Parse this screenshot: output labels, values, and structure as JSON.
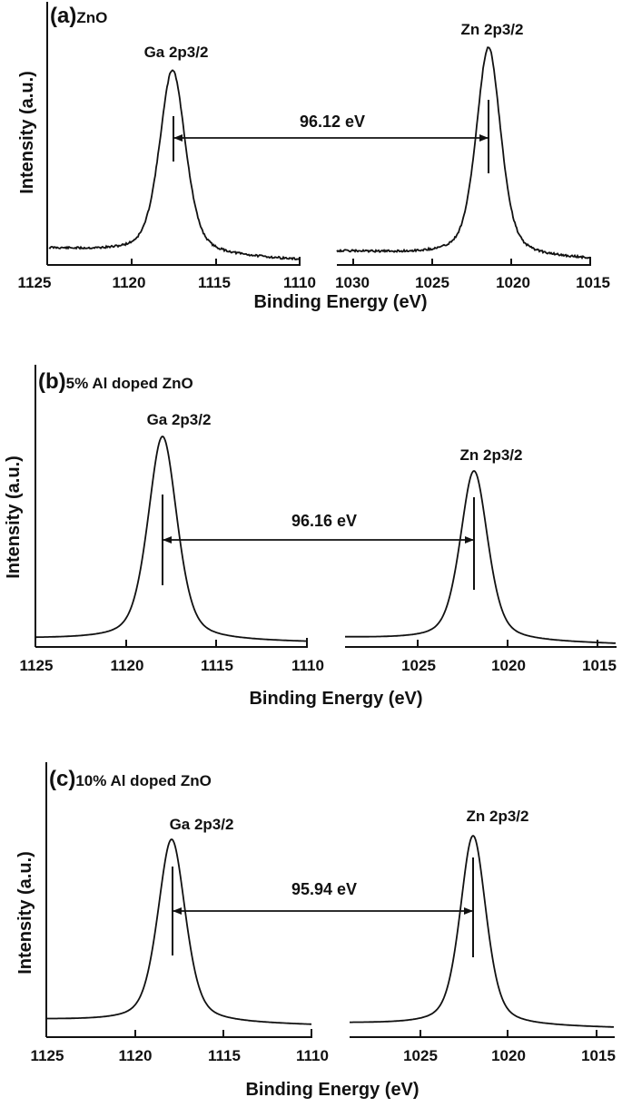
{
  "figure": {
    "xlabel": "Binding Energy (eV)",
    "ylabel": "Intensity (a.u.)"
  },
  "panels": [
    {
      "tag": "(a)",
      "title": "ZnO",
      "ga_label": "Ga 2p3/2",
      "zn_label": "Zn 2p3/2",
      "separation_label": "96.12 eV",
      "left_ticks": [
        "1125",
        "1120",
        "1115",
        "1110"
      ],
      "right_ticks": [
        "1030",
        "1025",
        "1020",
        "1015"
      ]
    },
    {
      "tag": "(b)",
      "title": "5% Al doped ZnO",
      "ga_label": "Ga 2p3/2",
      "zn_label": "Zn 2p3/2",
      "separation_label": "96.16 eV",
      "left_ticks": [
        "1125",
        "1120",
        "1115",
        "1110"
      ],
      "right_ticks": [
        "1025",
        "1020",
        "1015"
      ]
    },
    {
      "tag": "(c)",
      "title": "10% Al doped ZnO",
      "ga_label": "Ga 2p3/2",
      "zn_label": "Zn 2p3/2",
      "separation_label": "95.94 eV",
      "left_ticks": [
        "1125",
        "1120",
        "1115",
        "1110"
      ],
      "right_ticks": [
        "1025",
        "1020",
        "1015"
      ]
    }
  ],
  "chart_data": [
    {
      "type": "line",
      "title": "(a) ZnO",
      "xlabel": "Binding Energy (eV)",
      "ylabel": "Intensity (a.u.)",
      "x_axis": "broken, reversed",
      "segments": [
        {
          "xlim": [
            1125,
            1110
          ],
          "ticks": [
            1125,
            1120,
            1115,
            1110
          ]
        },
        {
          "xlim": [
            1031,
            1015
          ],
          "ticks": [
            1030,
            1025,
            1020,
            1015
          ]
        }
      ],
      "series": [
        {
          "name": "Ga 2p3/2",
          "peak_position_eV": 1117.5,
          "relative_peak_height": 0.75,
          "fwhm_eV": 1.9,
          "noisy": true
        },
        {
          "name": "Zn 2p3/2",
          "peak_position_eV": 1021.4,
          "relative_peak_height": 0.84,
          "fwhm_eV": 1.9,
          "noisy": true
        }
      ],
      "annotations": [
        {
          "text": "96.12 eV",
          "type": "double-arrow",
          "from": "Ga 2p3/2 peak",
          "to": "Zn 2p3/2 peak"
        }
      ],
      "grid": false,
      "yticks": "none"
    },
    {
      "type": "line",
      "title": "(b) 5% Al doped ZnO",
      "xlabel": "Binding Energy (eV)",
      "ylabel": "Intensity (a.u.)",
      "x_axis": "broken, reversed",
      "segments": [
        {
          "xlim": [
            1125,
            1110
          ],
          "ticks": [
            1125,
            1120,
            1115,
            1110
          ]
        },
        {
          "xlim": [
            1029,
            1014
          ],
          "ticks": [
            1025,
            1020,
            1015
          ]
        }
      ],
      "series": [
        {
          "name": "Ga 2p3/2",
          "peak_position_eV": 1117.9,
          "relative_peak_height": 0.82,
          "fwhm_eV": 1.9,
          "noisy": false
        },
        {
          "name": "Zn 2p3/2",
          "peak_position_eV": 1021.8,
          "relative_peak_height": 0.69,
          "fwhm_eV": 1.9,
          "noisy": false
        }
      ],
      "annotations": [
        {
          "text": "96.16 eV",
          "type": "double-arrow",
          "from": "Ga 2p3/2 peak",
          "to": "Zn 2p3/2 peak"
        }
      ],
      "grid": false,
      "yticks": "none"
    },
    {
      "type": "line",
      "title": "(c) 10% Al doped ZnO",
      "xlabel": "Binding Energy (eV)",
      "ylabel": "Intensity (a.u.)",
      "x_axis": "broken, reversed",
      "segments": [
        {
          "xlim": [
            1125,
            1110
          ],
          "ticks": [
            1125,
            1120,
            1115,
            1110
          ]
        },
        {
          "xlim": [
            1029,
            1014
          ],
          "ticks": [
            1025,
            1020,
            1015
          ]
        }
      ],
      "series": [
        {
          "name": "Ga 2p3/2",
          "peak_position_eV": 1117.9,
          "relative_peak_height": 0.69,
          "fwhm_eV": 1.9,
          "noisy": false
        },
        {
          "name": "Zn 2p3/2",
          "peak_position_eV": 1021.9,
          "relative_peak_height": 0.7,
          "fwhm_eV": 1.9,
          "noisy": false
        }
      ],
      "annotations": [
        {
          "text": "95.94 eV",
          "type": "double-arrow",
          "from": "Ga 2p3/2 peak",
          "to": "Zn 2p3/2 peak"
        }
      ],
      "grid": false,
      "yticks": "none"
    }
  ]
}
